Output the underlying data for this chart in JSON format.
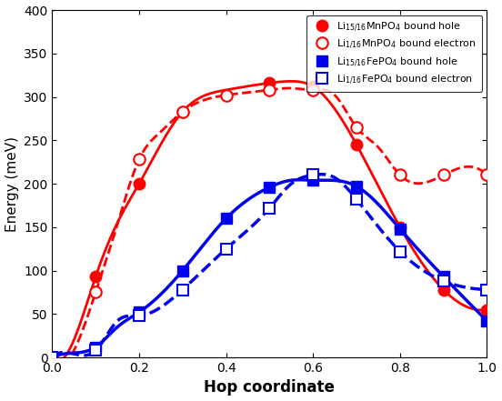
{
  "xlabel": "Hop coordinate",
  "ylabel": "Energy (meV)",
  "xlim": [
    0,
    1
  ],
  "ylim": [
    0,
    400
  ],
  "yticks": [
    0,
    50,
    100,
    150,
    200,
    250,
    300,
    350,
    400
  ],
  "xticks": [
    0,
    0.2,
    0.4,
    0.6,
    0.8,
    1.0
  ],
  "mn_hole_x": [
    0.0,
    0.05,
    0.1,
    0.15,
    0.2,
    0.3,
    0.4,
    0.5,
    0.55,
    0.6,
    0.7,
    0.8,
    0.9,
    1.0
  ],
  "mn_hole_y": [
    0,
    20,
    93,
    155,
    200,
    283,
    308,
    316,
    318,
    312,
    245,
    150,
    78,
    55
  ],
  "mn_elec_x": [
    0.0,
    0.05,
    0.1,
    0.15,
    0.2,
    0.25,
    0.3,
    0.4,
    0.5,
    0.55,
    0.6,
    0.65,
    0.7,
    0.75,
    0.8,
    0.9,
    1.0
  ],
  "mn_elec_y": [
    0,
    8,
    75,
    153,
    228,
    260,
    283,
    302,
    308,
    310,
    308,
    302,
    265,
    242,
    210,
    210,
    210
  ],
  "fe_hole_x": [
    0.0,
    0.05,
    0.1,
    0.15,
    0.2,
    0.3,
    0.4,
    0.5,
    0.55,
    0.6,
    0.7,
    0.8,
    0.9,
    1.0
  ],
  "fe_hole_y": [
    0,
    5,
    12,
    35,
    52,
    100,
    160,
    196,
    204,
    204,
    197,
    148,
    93,
    42
  ],
  "fe_elec_x": [
    0.0,
    0.05,
    0.1,
    0.15,
    0.2,
    0.3,
    0.4,
    0.5,
    0.55,
    0.6,
    0.65,
    0.7,
    0.8,
    0.9,
    1.0
  ],
  "fe_elec_y": [
    0,
    4,
    8,
    42,
    48,
    78,
    125,
    172,
    200,
    210,
    207,
    182,
    122,
    88,
    78
  ],
  "mn_hole_marker_x": [
    0.0,
    0.1,
    0.2,
    0.3,
    0.5,
    0.6,
    0.7,
    0.8,
    0.9,
    1.0
  ],
  "mn_hole_marker_y": [
    0,
    93,
    200,
    283,
    316,
    312,
    245,
    150,
    78,
    55
  ],
  "mn_elec_marker_x": [
    0.0,
    0.1,
    0.2,
    0.3,
    0.4,
    0.5,
    0.6,
    0.7,
    0.8,
    0.9,
    1.0
  ],
  "mn_elec_marker_y": [
    0,
    75,
    228,
    283,
    302,
    308,
    308,
    265,
    210,
    210,
    210
  ],
  "fe_hole_marker_x": [
    0.0,
    0.1,
    0.2,
    0.3,
    0.4,
    0.5,
    0.6,
    0.7,
    0.8,
    0.9,
    1.0
  ],
  "fe_hole_marker_y": [
    0,
    12,
    52,
    100,
    160,
    196,
    204,
    197,
    148,
    93,
    42
  ],
  "fe_elec_marker_x": [
    0.0,
    0.1,
    0.2,
    0.3,
    0.4,
    0.5,
    0.6,
    0.7,
    0.8,
    0.9,
    1.0
  ],
  "fe_elec_marker_y": [
    0,
    8,
    48,
    78,
    125,
    172,
    210,
    182,
    122,
    88,
    78
  ],
  "color_red": "#FF0000",
  "color_blue": "#0000EE",
  "legend_entries": [
    "Li$_{15/16}$MnPO$_4$ bound hole",
    "Li$_{1/16}$MnPO$_4$ bound electron",
    "Li$_{15/16}$FePO$_4$ bound hole",
    "Li$_{1/16}$FePO$_4$ bound electron"
  ]
}
